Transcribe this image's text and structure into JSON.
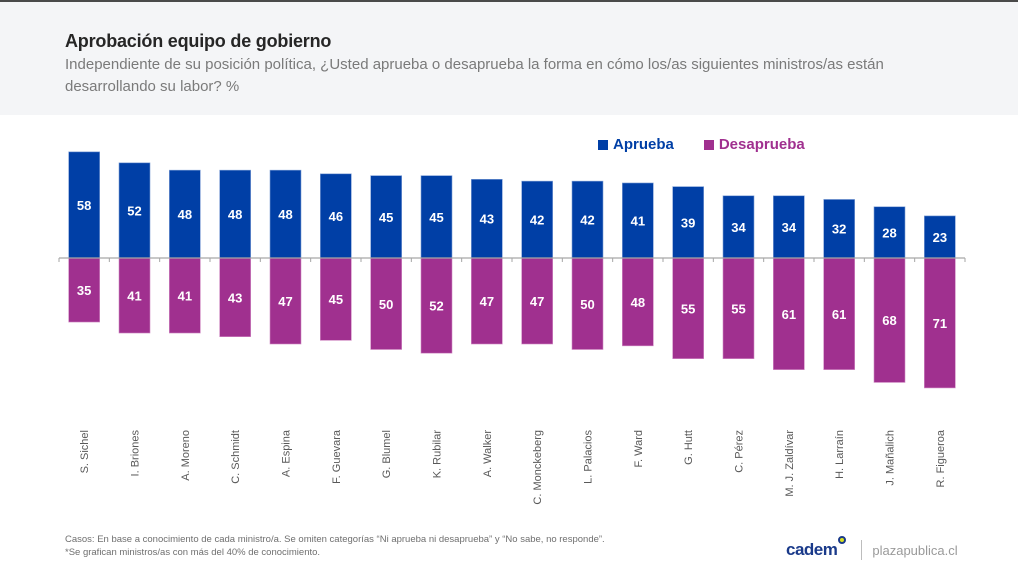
{
  "header": {
    "title": "Aprobación equipo de gobierno",
    "subtitle": "Independiente de su posición política, ¿Usted aprueba o desaprueba la forma en cómo los/as siguientes ministros/as están desarrollando su labor? %"
  },
  "legend": {
    "approve_label": "Aprueba",
    "disapprove_label": "Desaprueba"
  },
  "colors": {
    "approve": "#003fa6",
    "disapprove": "#a0308f",
    "axis": "#a6a6a6",
    "label_text": "#595959"
  },
  "footer": {
    "note1": "Casos: En base a conocimiento de cada ministro/a. Se omiten categorías “Ni aprueba ni desaprueba” y “No sabe, no responde”.",
    "note2": "*Se grafican ministros/as con más del 40% de conocimiento.",
    "brand": "cadem",
    "site": "plazapublica.cl"
  },
  "chart_data": {
    "type": "bar",
    "stacking": "diverging",
    "title": "Aprobación equipo de gobierno",
    "xlabel": "",
    "ylabel": "%",
    "ylim": [
      -71,
      58
    ],
    "grid": false,
    "legend_position": "top-right",
    "categories": [
      "S. Sichel",
      "I. Briones",
      "A. Moreno",
      "C. Schmidt",
      "A. Espina",
      "F. Guevara",
      "G. Blumel",
      "K. Rubilar",
      "A. Walker",
      "C. Monckeberg",
      "L. Palacios",
      "F. Ward",
      "G. Hutt",
      "C. Pérez",
      "M. J. Zaldívar",
      "H. Larraín",
      "J. Mañalich",
      "R. Figueroa"
    ],
    "series": [
      {
        "name": "Aprueba",
        "direction": "up",
        "values": [
          58,
          52,
          48,
          48,
          48,
          46,
          45,
          45,
          43,
          42,
          42,
          41,
          39,
          34,
          34,
          32,
          28,
          23
        ]
      },
      {
        "name": "Desaprueba",
        "direction": "down",
        "values": [
          35,
          41,
          41,
          43,
          47,
          45,
          50,
          52,
          47,
          47,
          50,
          48,
          55,
          55,
          61,
          61,
          68,
          71
        ]
      }
    ]
  }
}
